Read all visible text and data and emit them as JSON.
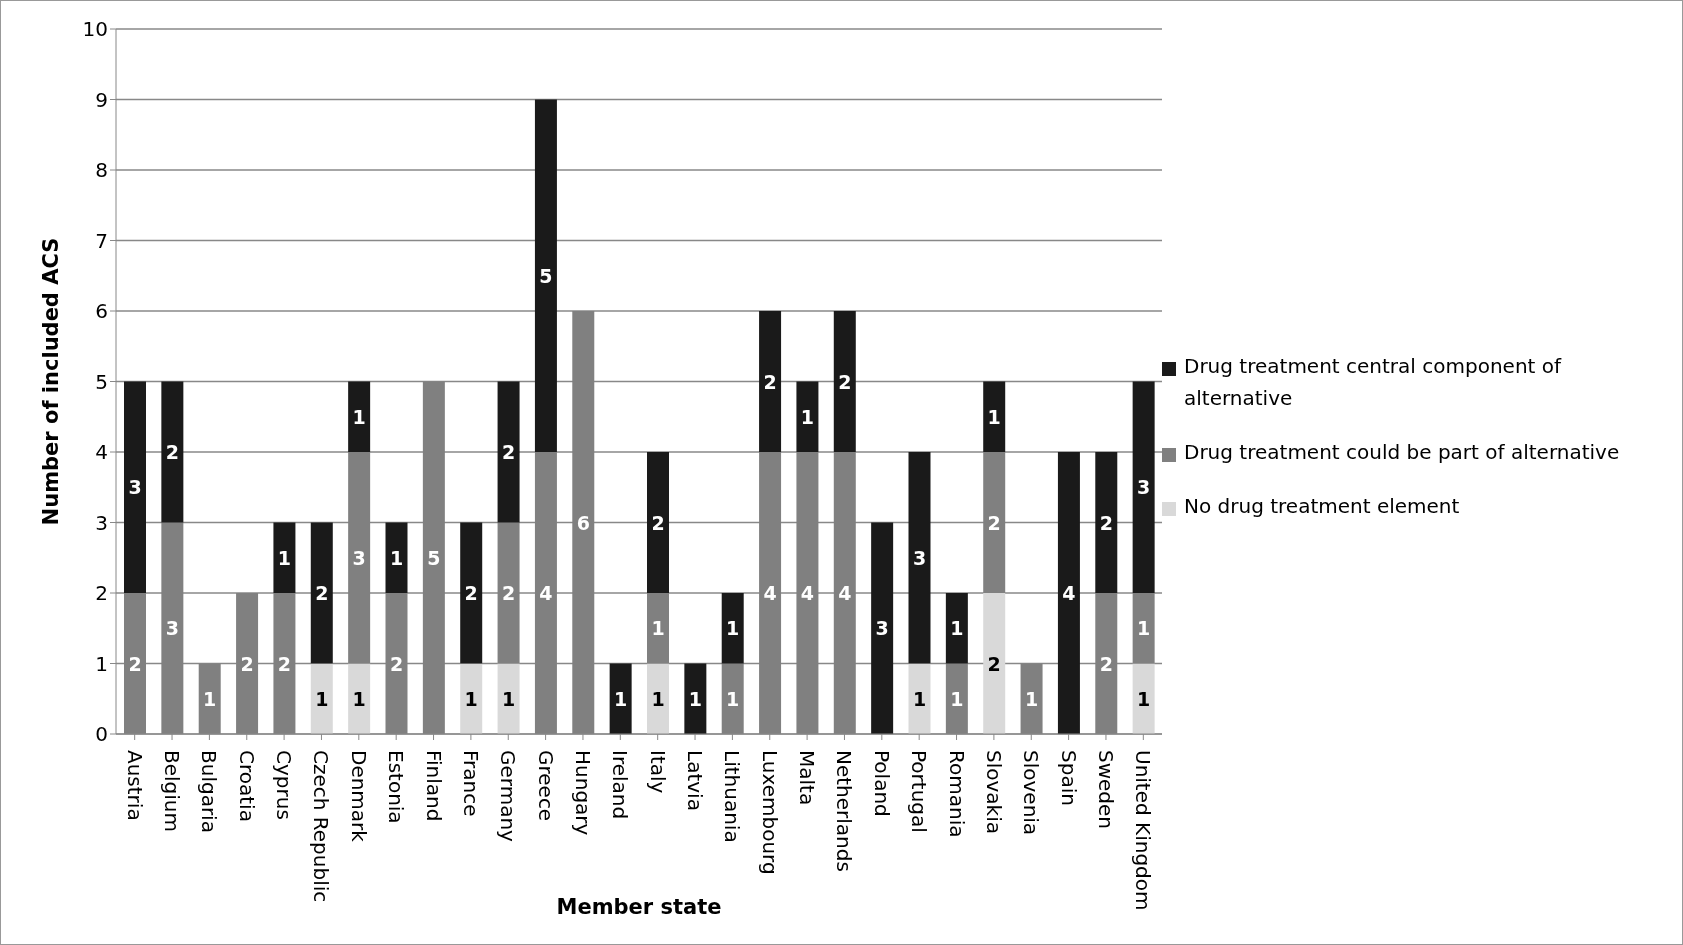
{
  "chart_data": {
    "type": "bar",
    "stacked": true,
    "xlabel": "Member state",
    "ylabel": "Number of included ACS",
    "categories": [
      "Austria",
      "Belgium",
      "Bulgaria",
      "Croatia",
      "Cyprus",
      "Czech Republic",
      "Denmark",
      "Estonia",
      "Finland",
      "France",
      "Germany",
      "Greece",
      "Hungary",
      "Ireland",
      "Italy",
      "Latvia",
      "Lithuania",
      "Luxembourg",
      "Malta",
      "Netherlands",
      "Poland",
      "Portugal",
      "Romania",
      "Slovakia",
      "Slovenia",
      "Spain",
      "Sweden",
      "United Kingdom"
    ],
    "series": [
      {
        "name": "No drug treatment element",
        "color": "#d9d9d9",
        "values": [
          null,
          null,
          null,
          null,
          null,
          1,
          1,
          null,
          null,
          1,
          1,
          null,
          null,
          null,
          1,
          null,
          null,
          null,
          null,
          null,
          null,
          1,
          null,
          2,
          null,
          null,
          null,
          1
        ]
      },
      {
        "name": "Drug treatment could be part of alternative",
        "color": "#808080",
        "values": [
          2,
          3,
          1,
          2,
          2,
          null,
          3,
          2,
          5,
          null,
          2,
          4,
          6,
          null,
          1,
          null,
          1,
          4,
          4,
          4,
          null,
          null,
          1,
          2,
          1,
          null,
          2,
          1
        ]
      },
      {
        "name": "Drug treatment central component of alternative",
        "color": "#1a1a1a",
        "values": [
          3,
          2,
          null,
          null,
          1,
          2,
          1,
          1,
          null,
          2,
          2,
          5,
          null,
          1,
          2,
          1,
          1,
          2,
          1,
          2,
          3,
          3,
          1,
          1,
          null,
          4,
          2,
          3
        ]
      }
    ],
    "ylim": [
      0,
      10
    ],
    "yticks": [
      0,
      1,
      2,
      3,
      4,
      5,
      6,
      7,
      8,
      9,
      10
    ],
    "grid": "y",
    "legend": "right",
    "data_labels": true
  }
}
